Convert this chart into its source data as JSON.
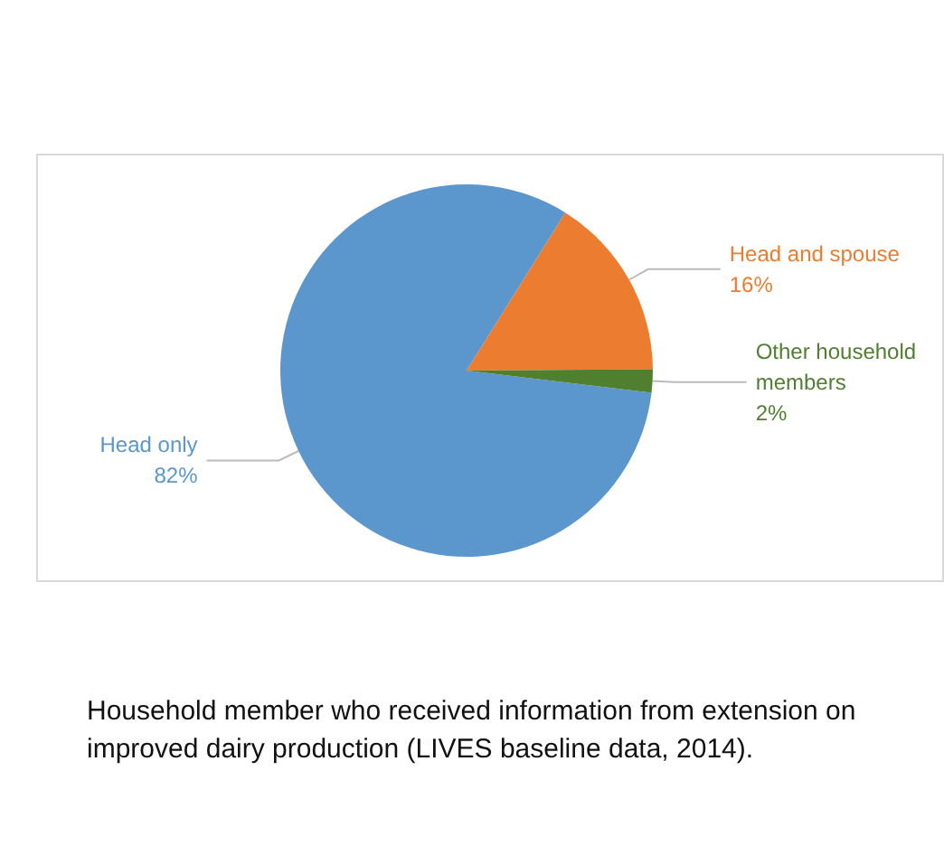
{
  "chart_data": {
    "type": "pie",
    "title": "Household member who received information from extension on improved dairy production (LIVES baseline data, 2014).",
    "categories": [
      "Head only",
      "Head and spouse",
      "Other household members"
    ],
    "values": [
      82,
      16,
      2
    ],
    "colors": [
      "#5b96cd",
      "#ec7c30",
      "#4f7f2f"
    ],
    "value_labels": [
      "82%",
      "16%",
      "2%"
    ]
  }
}
